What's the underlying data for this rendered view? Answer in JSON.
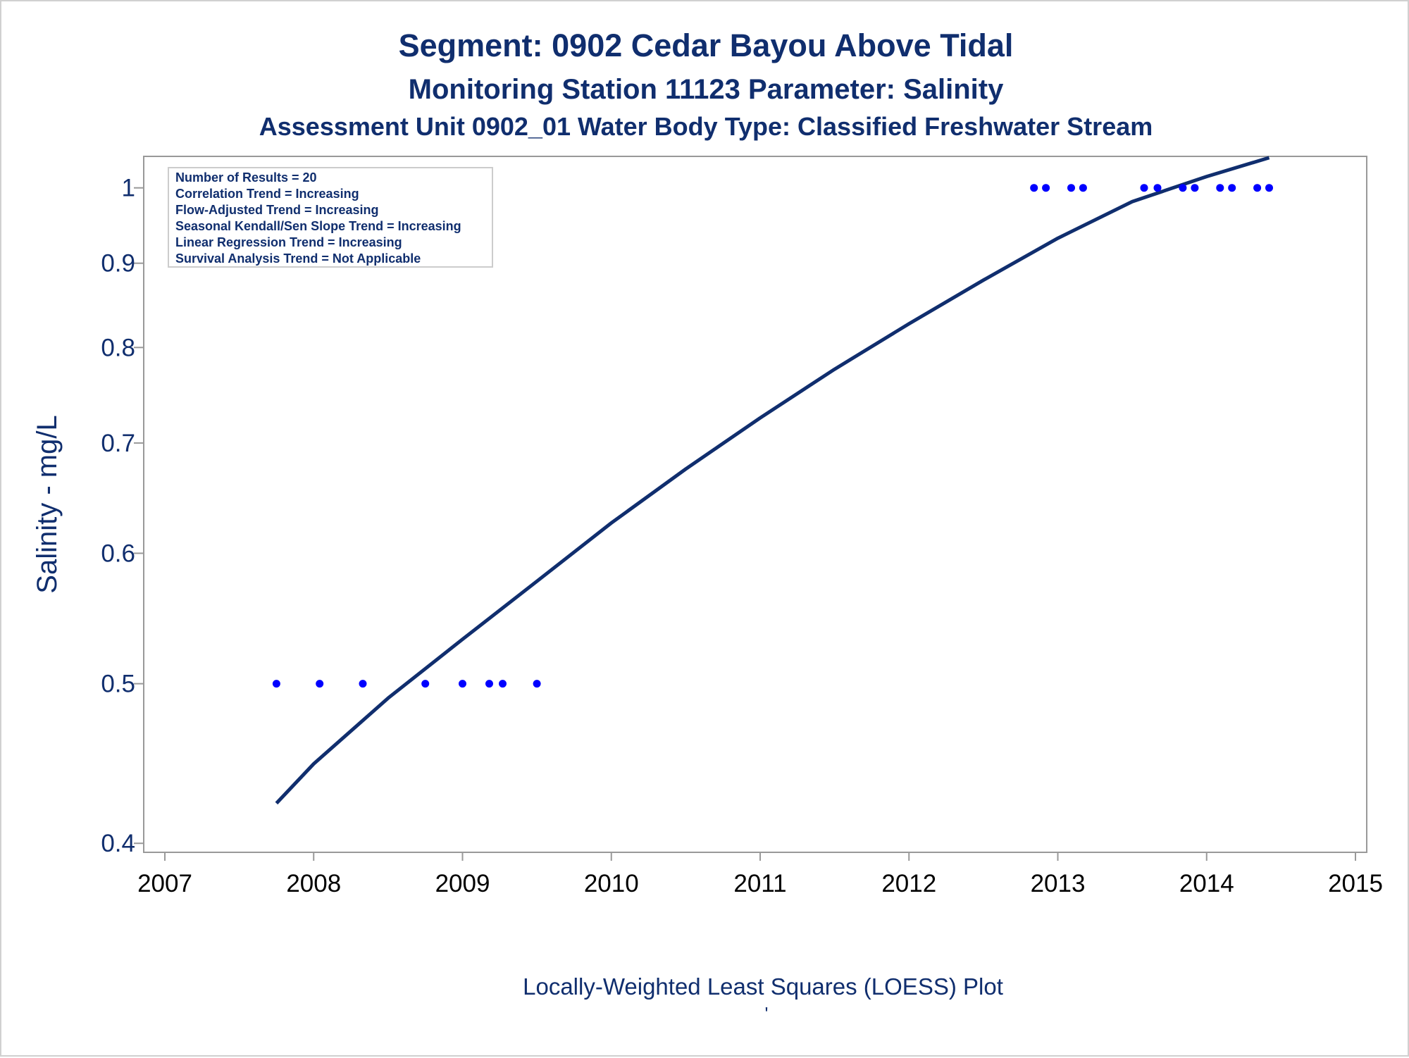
{
  "titles": {
    "line1": "Segment: 0902  Cedar Bayou Above Tidal",
    "line2": "Monitoring Station 11123 Parameter: Salinity",
    "line3": "Assessment Unit 0902_01   Water Body Type: Classified Freshwater Stream"
  },
  "stats_box": [
    "Number of Results = 20",
    "Correlation Trend = Increasing",
    "Flow-Adjusted Trend = Increasing",
    "Seasonal Kendall/Sen Slope Trend = Increasing",
    "Linear Regression Trend = Increasing",
    "Survival Analysis Trend = Not Applicable"
  ],
  "footnote": {
    "caption": "Locally-Weighted Least Squares (LOESS) Plot",
    "mark": "'"
  },
  "colors": {
    "text": "#102e6e",
    "points": "#0000ff",
    "line": "#102e6e",
    "frame": "#999999"
  },
  "chart_data": {
    "type": "scatter",
    "title": "",
    "xlabel": "",
    "ylabel": "Salinity - mg/L",
    "y_scale": "log",
    "xlim": [
      2007,
      2015
    ],
    "ylim": [
      0.395,
      1.045
    ],
    "x_ticks": [
      2007,
      2008,
      2009,
      2010,
      2011,
      2012,
      2013,
      2014,
      2015
    ],
    "y_ticks": [
      0.4,
      0.5,
      0.6,
      0.7,
      0.8,
      0.9,
      1
    ],
    "y_tick_labels": [
      "0.4",
      "0.5",
      "0.6",
      "0.7",
      "0.8",
      "0.9",
      "1"
    ],
    "grid": false,
    "series": [
      {
        "type": "scatter",
        "x": [
          2007.75,
          2008.04,
          2008.33,
          2008.75,
          2009.0,
          2009.18,
          2009.27,
          2009.5,
          2012.84,
          2012.92,
          2013.09,
          2013.17,
          2013.58,
          2013.67,
          2013.84,
          2013.92,
          2014.09,
          2014.17,
          2014.34,
          2014.42
        ],
        "y": [
          0.5,
          0.5,
          0.5,
          0.5,
          0.5,
          0.5,
          0.5,
          0.5,
          1,
          1,
          1,
          1,
          1,
          1,
          1,
          1,
          1,
          1,
          1,
          1
        ]
      },
      {
        "type": "line",
        "x": [
          2007.75,
          2008.0,
          2008.5,
          2009.0,
          2009.5,
          2010.0,
          2010.5,
          2011.0,
          2011.5,
          2012.0,
          2012.5,
          2013.0,
          2013.5,
          2014.0,
          2014.42
        ],
        "y": [
          0.423,
          0.447,
          0.49,
          0.532,
          0.577,
          0.626,
          0.675,
          0.725,
          0.776,
          0.827,
          0.879,
          0.932,
          0.981,
          1.016,
          1.043
        ]
      }
    ]
  }
}
